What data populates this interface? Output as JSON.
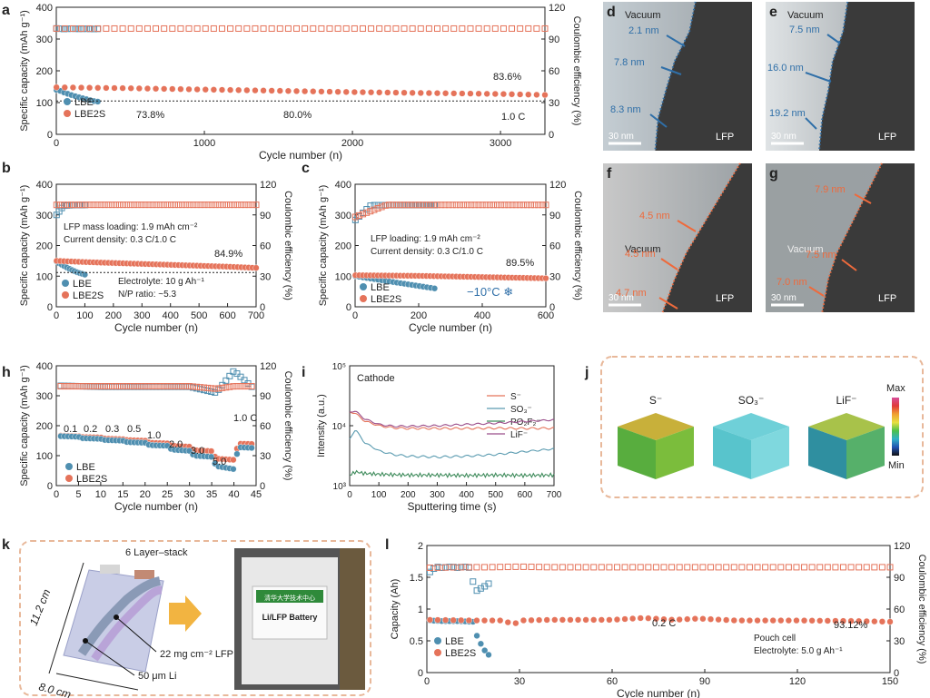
{
  "colors": {
    "lbe": "#4f8fb0",
    "lbe2s": "#e5735a",
    "accent_blue": "#2f6fa8",
    "accent_orange": "#ee6a3c",
    "dash_box": "#e8b89a"
  },
  "panels": {
    "a": {
      "letter": "a",
      "legend": [
        "LBE",
        "LBE2S"
      ],
      "ann_lbe": "73.8%",
      "ann_mid": "80.0%",
      "ann_end": "83.6%",
      "rate": "1.0 C"
    },
    "b": {
      "letter": "b",
      "legend": [
        "LBE",
        "LBE2S"
      ],
      "line1": "LFP mass loading: 1.9 mAh cm⁻²",
      "line2": "Current density: 0.3 C/1.0 C",
      "ann_end": "84.9%",
      "line3": "Electrolyte: 10 g Ah⁻¹",
      "line4": "N/P ratio: ~5.3"
    },
    "c": {
      "letter": "c",
      "legend": [
        "LBE",
        "LBE2S"
      ],
      "line1": "LFP loading: 1.9 mAh cm⁻²",
      "line2": "Current density: 0.3 C/1.0 C",
      "ann_end": "89.5%",
      "temp": "−10°C ❄"
    },
    "d": {
      "letter": "d",
      "vacuum": "Vacuum",
      "labels": [
        "2.1 nm",
        "7.8 nm",
        "8.3 nm"
      ],
      "scale": "30 nm",
      "lfp": "LFP"
    },
    "e": {
      "letter": "e",
      "vacuum": "Vacuum",
      "labels": [
        "7.5 nm",
        "16.0 nm",
        "19.2 nm"
      ],
      "scale": "30 nm",
      "lfp": "LFP"
    },
    "f": {
      "letter": "f",
      "vacuum": "Vacuum",
      "labels": [
        "4.5 nm",
        "4.5 nm",
        "4.7 nm"
      ],
      "scale": "30 nm",
      "lfp": "LFP"
    },
    "g": {
      "letter": "g",
      "vacuum": "Vacuum",
      "labels": [
        "7.9 nm",
        "7.5 nm",
        "7.0 nm"
      ],
      "scale": "30 nm",
      "lfp": "LFP"
    },
    "h": {
      "letter": "h",
      "legend": [
        "LBE",
        "LBE2S"
      ],
      "rates": [
        "0.1",
        "0.2",
        "0.3",
        "0.5",
        "1.0",
        "2.0",
        "3.0",
        "5.0",
        "1.0 C"
      ]
    },
    "i": {
      "letter": "i",
      "title": "Cathode",
      "legend": [
        "S⁻",
        "SO₃⁻",
        "PO₂F₂⁻",
        "LiF⁻"
      ]
    },
    "j": {
      "letter": "j",
      "labels": [
        "S⁻",
        "SO₃⁻",
        "LiF⁻"
      ],
      "max": "Max",
      "min": "Min"
    },
    "k": {
      "letter": "k",
      "stack": "6 Layer–stack",
      "dim1": "11.2 cm",
      "dim2": "8.0 cm",
      "lfp_label": "22 mg cm⁻² LFP",
      "li_label": "50 μm Li",
      "badge": "清华大学技术中心",
      "battery": "Li/LFP Battery"
    },
    "l": {
      "letter": "l",
      "legend": [
        "LBE",
        "LBE2S"
      ],
      "rate": "0.2 C",
      "ann_end": "93.12%",
      "line1": "Pouch cell",
      "line2": "Electrolyte: 5.0 g Ah⁻¹"
    }
  },
  "chart_data": [
    {
      "panel": "a",
      "type": "scatter",
      "xlabel": "Cycle number (n)",
      "ylabel": "Specific capacity (mAh g⁻¹)",
      "ylabel2": "Coulombic efficiency (%)",
      "xlim": [
        0,
        3300
      ],
      "ylim": [
        0,
        400
      ],
      "y2lim": [
        0,
        120
      ],
      "xticks": [
        0,
        1000,
        2000,
        3000
      ],
      "yticks": [
        0,
        100,
        200,
        300,
        400
      ],
      "y2ticks": [
        0,
        30,
        60,
        90,
        120
      ],
      "series": [
        {
          "name": "LBE",
          "axis": "y",
          "x": [
            1,
            20,
            50,
            100,
            150,
            200,
            250,
            280
          ],
          "y": [
            140,
            138,
            132,
            124,
            117,
            111,
            105,
            103
          ]
        },
        {
          "name": "LBE2S",
          "axis": "y",
          "x": [
            1,
            500,
            1000,
            1500,
            2000,
            2500,
            3000,
            3300
          ],
          "y": [
            148,
            145,
            141,
            137,
            133,
            130,
            127,
            124
          ]
        },
        {
          "name": "LBE",
          "axis": "y2",
          "x": [
            1,
            50,
            100,
            150,
            200,
            250,
            280
          ],
          "y": [
            100,
            99.5,
            99.8,
            99.6,
            99.7,
            99.5,
            99.6
          ]
        },
        {
          "name": "LBE2S",
          "axis": "y2",
          "x": [
            1,
            500,
            1000,
            1500,
            2000,
            2500,
            3000,
            3300
          ],
          "y": [
            99.9,
            99.9,
            99.9,
            99.9,
            99.9,
            99.9,
            99.9,
            99.9
          ]
        }
      ]
    },
    {
      "panel": "b",
      "type": "scatter",
      "xlabel": "Cycle number (n)",
      "ylabel": "Specific capacity (mAh g⁻¹)",
      "ylabel2": "Coulombic efficiency (%)",
      "xlim": [
        0,
        700
      ],
      "ylim": [
        0,
        400
      ],
      "y2lim": [
        0,
        120
      ],
      "xticks": [
        0,
        100,
        200,
        300,
        400,
        500,
        600,
        700
      ],
      "yticks": [
        0,
        100,
        200,
        300,
        400
      ],
      "y2ticks": [
        0,
        30,
        60,
        90,
        120
      ],
      "series": [
        {
          "name": "LBE",
          "axis": "y",
          "x": [
            1,
            10,
            25,
            50,
            75,
            100
          ],
          "y": [
            148,
            142,
            134,
            122,
            112,
            105
          ]
        },
        {
          "name": "LBE2S",
          "axis": "y",
          "x": [
            1,
            100,
            200,
            300,
            400,
            500,
            600,
            700
          ],
          "y": [
            150,
            146,
            143,
            140,
            137,
            134,
            131,
            127
          ]
        },
        {
          "name": "LBE",
          "axis": "y2",
          "x": [
            1,
            25,
            50,
            75,
            100
          ],
          "y": [
            90,
            99,
            99.5,
            99.6,
            99.7
          ]
        },
        {
          "name": "LBE2S",
          "axis": "y2",
          "x": [
            1,
            100,
            200,
            300,
            400,
            500,
            600,
            700
          ],
          "y": [
            99.8,
            99.9,
            99.9,
            99.9,
            99.9,
            99.9,
            99.9,
            99.9
          ]
        }
      ]
    },
    {
      "panel": "c",
      "type": "scatter",
      "xlabel": "Cycle number (n)",
      "ylabel": "Specific capacity (mAh g⁻¹)",
      "ylabel2": "Coulombic efficiency (%)",
      "xlim": [
        0,
        600
      ],
      "ylim": [
        0,
        400
      ],
      "y2lim": [
        0,
        120
      ],
      "xticks": [
        0,
        200,
        400,
        600
      ],
      "yticks": [
        0,
        100,
        200,
        300,
        400
      ],
      "y2ticks": [
        0,
        30,
        60,
        90,
        120
      ],
      "series": [
        {
          "name": "LBE",
          "axis": "y",
          "x": [
            1,
            50,
            100,
            150,
            200,
            250
          ],
          "y": [
            100,
            92,
            84,
            76,
            68,
            60
          ]
        },
        {
          "name": "LBE2S",
          "axis": "y",
          "x": [
            1,
            100,
            200,
            300,
            400,
            500,
            600
          ],
          "y": [
            103,
            102,
            101,
            99,
            97,
            95,
            93
          ]
        },
        {
          "name": "LBE",
          "axis": "y2",
          "x": [
            1,
            50,
            100,
            150,
            200,
            250
          ],
          "y": [
            85,
            99.5,
            99.6,
            99.6,
            99.6,
            99.6
          ]
        },
        {
          "name": "LBE2S",
          "axis": "y2",
          "x": [
            1,
            100,
            200,
            300,
            400,
            500,
            600
          ],
          "y": [
            88,
            99.8,
            99.8,
            99.8,
            99.8,
            99.8,
            99.8
          ]
        }
      ]
    },
    {
      "panel": "h",
      "type": "scatter",
      "xlabel": "Cycle number (n)",
      "ylabel": "Specific capacity (mAh g⁻¹)",
      "ylabel2": "Coulombic efficiency (%)",
      "xlim": [
        0,
        45
      ],
      "ylim": [
        0,
        400
      ],
      "y2lim": [
        0,
        120
      ],
      "xticks": [
        0,
        5,
        10,
        15,
        20,
        25,
        30,
        35,
        40,
        45
      ],
      "yticks": [
        0,
        100,
        200,
        300,
        400
      ],
      "y2ticks": [
        0,
        30,
        60,
        90,
        120
      ],
      "series": [
        {
          "name": "LBE2S",
          "axis": "y",
          "x": [
            1,
            5,
            6,
            10,
            11,
            15,
            16,
            20,
            21,
            25,
            26,
            30,
            31,
            35,
            36,
            40,
            41,
            44
          ],
          "y": [
            167,
            165,
            162,
            161,
            157,
            155,
            152,
            150,
            143,
            141,
            133,
            130,
            118,
            115,
            90,
            86,
            140,
            139
          ]
        },
        {
          "name": "LBE",
          "axis": "y",
          "x": [
            1,
            5,
            6,
            10,
            11,
            15,
            16,
            20,
            21,
            25,
            26,
            30,
            31,
            35,
            36,
            40,
            41,
            44
          ],
          "y": [
            165,
            163,
            158,
            156,
            152,
            150,
            145,
            143,
            135,
            133,
            120,
            116,
            100,
            96,
            65,
            55,
            128,
            126
          ]
        },
        {
          "name": "LBE",
          "axis": "y2",
          "x": [
            1,
            10,
            20,
            30,
            36,
            40,
            44
          ],
          "y": [
            100,
            99,
            99,
            99,
            93,
            115,
            99
          ]
        },
        {
          "name": "LBE2S",
          "axis": "y2",
          "x": [
            1,
            10,
            20,
            30,
            36,
            40,
            44
          ],
          "y": [
            99.5,
            99.5,
            99.5,
            99.5,
            97,
            99.5,
            99.5
          ]
        }
      ]
    },
    {
      "panel": "i",
      "type": "line",
      "xlabel": "Sputtering time (s)",
      "ylabel": "Intensity (a.u.)",
      "yscale": "log",
      "xlim": [
        0,
        700
      ],
      "ylim": [
        1000,
        100000
      ],
      "xticks": [
        0,
        100,
        200,
        300,
        400,
        500,
        600,
        700
      ],
      "yticks": [
        1000,
        10000,
        100000
      ],
      "yticklabels": [
        "10³",
        "10⁴",
        "10⁵"
      ],
      "series": [
        {
          "name": "S⁻",
          "x": [
            0,
            20,
            50,
            100,
            150,
            200,
            300,
            400,
            500,
            600,
            700
          ],
          "y": [
            17000,
            16000,
            12000,
            10000,
            9200,
            9000,
            9000,
            9000,
            9100,
            9000,
            9100
          ]
        },
        {
          "name": "SO₃⁻",
          "x": [
            0,
            20,
            50,
            100,
            150,
            200,
            300,
            400,
            500,
            600,
            700
          ],
          "y": [
            6000,
            8500,
            5200,
            3800,
            3300,
            3100,
            3000,
            3100,
            3300,
            3700,
            4100
          ]
        },
        {
          "name": "PO₂F₂⁻",
          "x": [
            0,
            20,
            50,
            100,
            200,
            300,
            400,
            500,
            600,
            700
          ],
          "y": [
            1500,
            1700,
            1600,
            1550,
            1500,
            1500,
            1480,
            1500,
            1480,
            1500
          ]
        },
        {
          "name": "LiF⁻",
          "x": [
            0,
            20,
            50,
            100,
            150,
            200,
            300,
            400,
            500,
            600,
            700
          ],
          "y": [
            17000,
            17500,
            13000,
            10500,
            9800,
            9800,
            10000,
            10500,
            11000,
            11800,
            12500
          ]
        }
      ]
    },
    {
      "panel": "l",
      "type": "scatter",
      "xlabel": "Cycle number (n)",
      "ylabel": "Capacity (Ah)",
      "ylabel2": "Coulombic efficiency (%)",
      "xlim": [
        0,
        150
      ],
      "ylim": [
        0,
        2.0
      ],
      "y2lim": [
        0,
        120
      ],
      "xticks": [
        0,
        30,
        60,
        90,
        120,
        150
      ],
      "yticks": [
        0,
        0.5,
        1.0,
        1.5,
        2.0
      ],
      "y2ticks": [
        0,
        30,
        60,
        90,
        120
      ],
      "series": [
        {
          "name": "LBE",
          "axis": "y",
          "x": [
            1,
            5,
            10,
            15,
            16,
            17,
            18,
            19,
            20
          ],
          "y": [
            0.82,
            0.81,
            0.81,
            0.8,
            0.6,
            0.5,
            0.4,
            0.33,
            0.28
          ]
        },
        {
          "name": "LBE2S",
          "axis": "y",
          "x": [
            1,
            15,
            25,
            28,
            30,
            40,
            60,
            70,
            80,
            88,
            100,
            120,
            140,
            150
          ],
          "y": [
            0.83,
            0.82,
            0.82,
            0.75,
            0.82,
            0.83,
            0.83,
            0.86,
            0.83,
            0.85,
            0.82,
            0.82,
            0.81,
            0.8
          ]
        },
        {
          "name": "LBE",
          "axis": "y2",
          "x": [
            1,
            3,
            5,
            8,
            10,
            12,
            14,
            15,
            16,
            17,
            18,
            19,
            20
          ],
          "y": [
            95,
            100,
            99,
            100,
            99,
            100,
            99,
            85,
            77,
            79,
            80,
            82,
            84
          ]
        },
        {
          "name": "LBE2S",
          "axis": "y2",
          "x": [
            1,
            10,
            20,
            30,
            40,
            60,
            80,
            100,
            120,
            140,
            150
          ],
          "y": [
            99,
            99.5,
            99.5,
            100,
            99.5,
            99.5,
            99.5,
            99.5,
            99.5,
            99.5,
            99.5
          ]
        }
      ]
    }
  ]
}
